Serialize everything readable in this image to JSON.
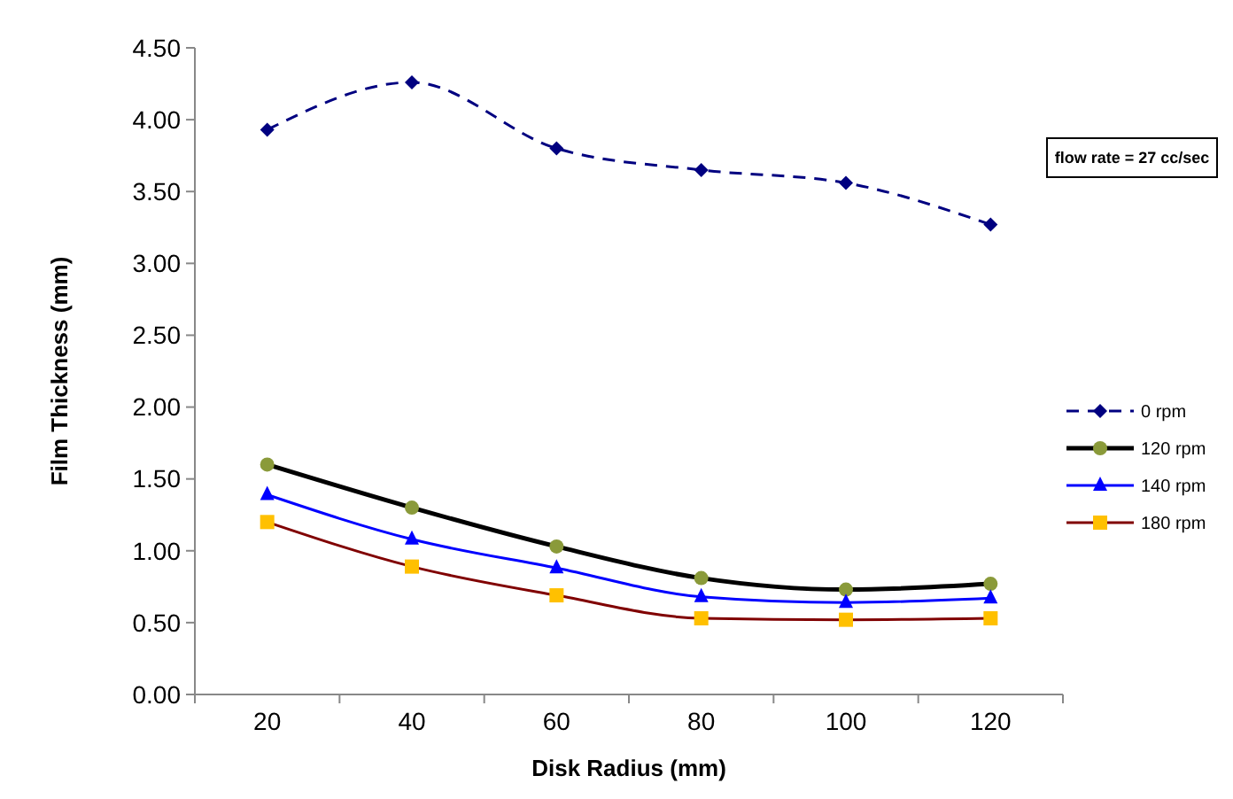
{
  "chart_data": {
    "type": "line",
    "xlabel": "Disk Radius (mm)",
    "ylabel": "Film Thickness (mm)",
    "categories": [
      "20",
      "40",
      "60",
      "80",
      "100",
      "120"
    ],
    "series": [
      {
        "name": "0 rpm",
        "color": "#000080",
        "marker": "diamond",
        "line_style": "dashed",
        "values": [
          3.93,
          4.26,
          3.8,
          3.65,
          3.56,
          3.27
        ]
      },
      {
        "name": "120 rpm",
        "color": "#000000",
        "marker": "circle",
        "line_style": "solid",
        "values": [
          1.6,
          1.3,
          1.03,
          0.81,
          0.73,
          0.77
        ]
      },
      {
        "name": "140 rpm",
        "color": "#0000ff",
        "marker": "triangle",
        "line_style": "solid",
        "values": [
          1.39,
          1.08,
          0.88,
          0.68,
          0.64,
          0.67
        ]
      },
      {
        "name": "180 rpm",
        "color": "#800000",
        "marker": "square",
        "line_style": "solid",
        "values": [
          1.2,
          0.89,
          0.69,
          0.53,
          0.52,
          0.53
        ]
      }
    ],
    "ylim": [
      0,
      4.5
    ],
    "yticks": [
      {
        "value": 0,
        "label": "0.00"
      },
      {
        "value": 0.5,
        "label": "0.50"
      },
      {
        "value": 1,
        "label": "1.00"
      },
      {
        "value": 1.5,
        "label": "1.50"
      },
      {
        "value": 2,
        "label": "2.00"
      },
      {
        "value": 2.5,
        "label": "2.50"
      },
      {
        "value": 3,
        "label": "3.00"
      },
      {
        "value": 3.5,
        "label": "3.50"
      },
      {
        "value": 4,
        "label": "4.00"
      },
      {
        "value": 4.5,
        "label": "4.50"
      }
    ],
    "annotations": [
      "flow rate = 27 cc/sec"
    ],
    "legend": "right",
    "grid": false
  }
}
